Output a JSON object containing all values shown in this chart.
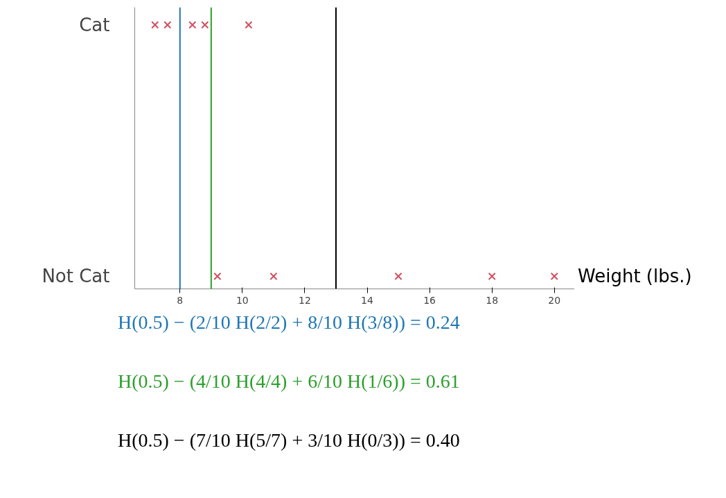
{
  "chart_data": {
    "type": "scatter",
    "orientation": "horizontal",
    "xlabel": "Weight (lbs.)",
    "xlim": [
      6.55,
      20.65
    ],
    "xticks": [
      8,
      10,
      12,
      14,
      16,
      18,
      20
    ],
    "categories": [
      "Cat",
      "Not Cat"
    ],
    "series": [
      {
        "color": "#d05060",
        "values": [
          7.2,
          9.2
        ]
      },
      {
        "color": "#d05060",
        "values": [
          7.6,
          11
        ]
      },
      {
        "color": "#d05060",
        "values": [
          8.4,
          15
        ]
      },
      {
        "color": "#d05060",
        "values": [
          8.8,
          18
        ]
      },
      {
        "color": "#d05060",
        "values": [
          10.2,
          20
        ]
      }
    ],
    "marker": "cross",
    "grid": false,
    "ref_lines": [
      {
        "axis": "x",
        "value": 8,
        "color": "#1f77b4"
      },
      {
        "axis": "x",
        "value": 9,
        "color": "#2ca02c"
      },
      {
        "axis": "x",
        "value": 13,
        "color": "#000000"
      }
    ],
    "annotations": [
      "H(0.5) − (2/10 H(2/2) + 8/10 H(3/8)) = 0.24",
      "H(0.5) − (4/10 H(4/4) + 6/10 H(1/6)) = 0.61",
      "H(0.5) − (7/10 H(5/7) + 3/10 H(0/3)) = 0.40"
    ]
  }
}
